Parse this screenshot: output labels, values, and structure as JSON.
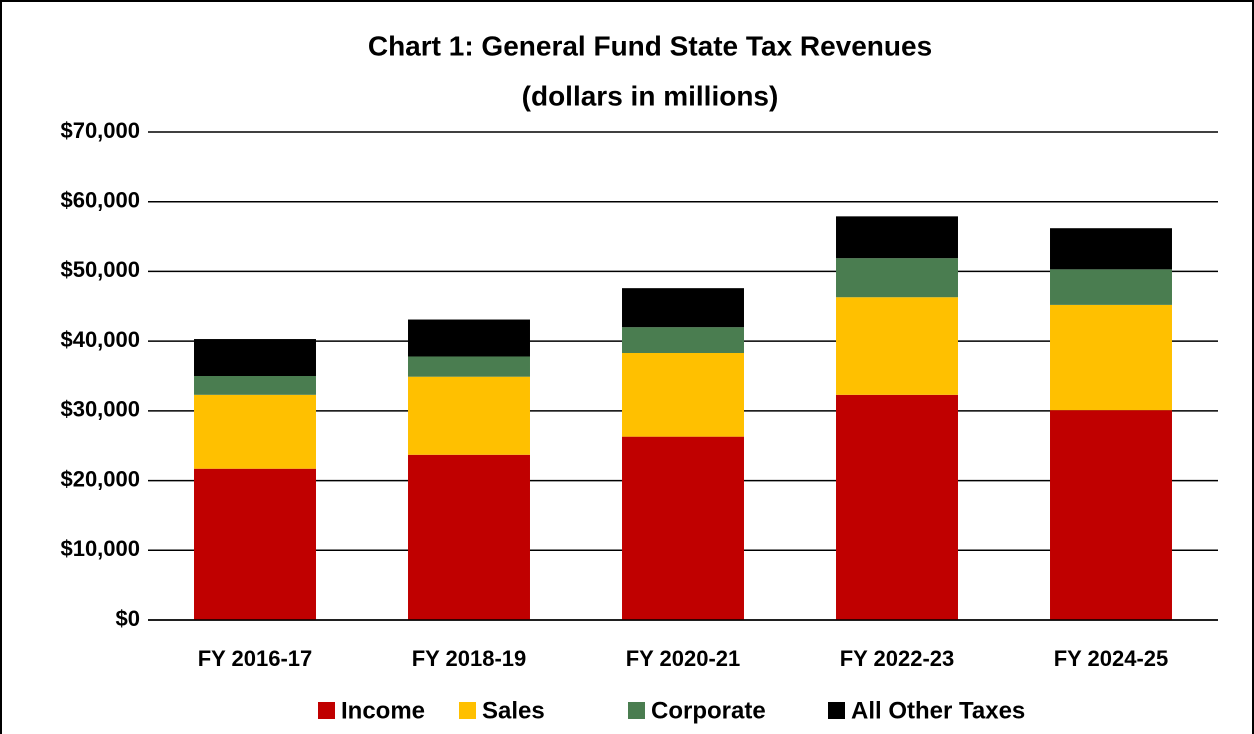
{
  "chart_data": {
    "type": "stacked_bar",
    "title": "Chart 1: General Fund State Tax Revenues",
    "subtitle": "(dollars in millions)",
    "categories": [
      "FY 2016-17",
      "FY 2018-19",
      "FY 2020-21",
      "FY 2022-23",
      "FY 2024-25"
    ],
    "series": [
      {
        "name": "Income",
        "color": "#c00000",
        "values": [
          21700,
          23700,
          26300,
          32300,
          30100
        ]
      },
      {
        "name": "Sales",
        "color": "#ffc000",
        "values": [
          10600,
          11200,
          12000,
          14000,
          15100
        ]
      },
      {
        "name": "Corporate",
        "color": "#4a7d50",
        "values": [
          2700,
          2900,
          3700,
          5600,
          5100
        ]
      },
      {
        "name": "All Other Taxes",
        "color": "#000000",
        "values": [
          5300,
          5300,
          5600,
          6000,
          5900
        ]
      }
    ],
    "ylim": [
      0,
      70000
    ],
    "yticks": [
      {
        "value": 0,
        "label": "$0"
      },
      {
        "value": 10000,
        "label": "$10,000"
      },
      {
        "value": 20000,
        "label": "$20,000"
      },
      {
        "value": 30000,
        "label": "$30,000"
      },
      {
        "value": 40000,
        "label": "$40,000"
      },
      {
        "value": 50000,
        "label": "$50,000"
      },
      {
        "value": 60000,
        "label": "$60,000"
      },
      {
        "value": 70000,
        "label": "$70,000"
      }
    ],
    "grid": true,
    "legend": "bottom"
  }
}
